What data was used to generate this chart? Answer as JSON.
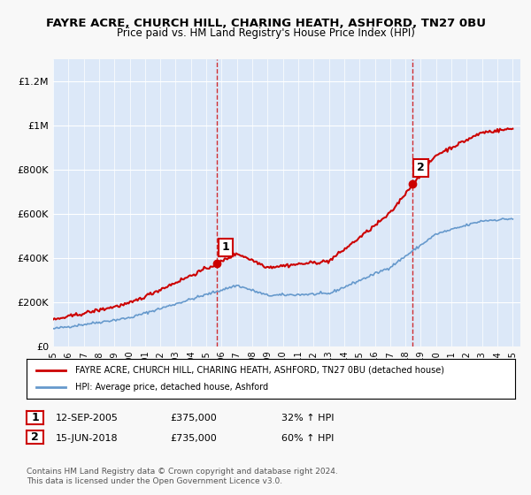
{
  "title": "FAYRE ACRE, CHURCH HILL, CHARING HEATH, ASHFORD, TN27 0BU",
  "subtitle": "Price paid vs. HM Land Registry's House Price Index (HPI)",
  "background_color": "#f0f4ff",
  "plot_bg_color": "#dce8f8",
  "ylim": [
    0,
    1300000
  ],
  "yticks": [
    0,
    200000,
    400000,
    600000,
    800000,
    1000000,
    1200000
  ],
  "ytick_labels": [
    "£0",
    "£200K",
    "£400K",
    "£600K",
    "£800K",
    "£1M",
    "£1.2M"
  ],
  "sale1_x": 2005.7,
  "sale1_y": 375000,
  "sale1_label": "1",
  "sale2_x": 2018.45,
  "sale2_y": 735000,
  "sale2_label": "2",
  "vline1_x": 2005.7,
  "vline2_x": 2018.45,
  "legend_line1_color": "#cc0000",
  "legend_line2_color": "#6699cc",
  "legend_label1": "FAYRE ACRE, CHURCH HILL, CHARING HEATH, ASHFORD, TN27 0BU (detached house)",
  "legend_label2": "HPI: Average price, detached house, Ashford",
  "table_row1": [
    "1",
    "12-SEP-2005",
    "£375,000",
    "32% ↑ HPI"
  ],
  "table_row2": [
    "2",
    "15-JUN-2018",
    "£735,000",
    "60% ↑ HPI"
  ],
  "footer": "Contains HM Land Registry data © Crown copyright and database right 2024.\nThis data is licensed under the Open Government Licence v3.0.",
  "xmin": 1995,
  "xmax": 2025.5
}
